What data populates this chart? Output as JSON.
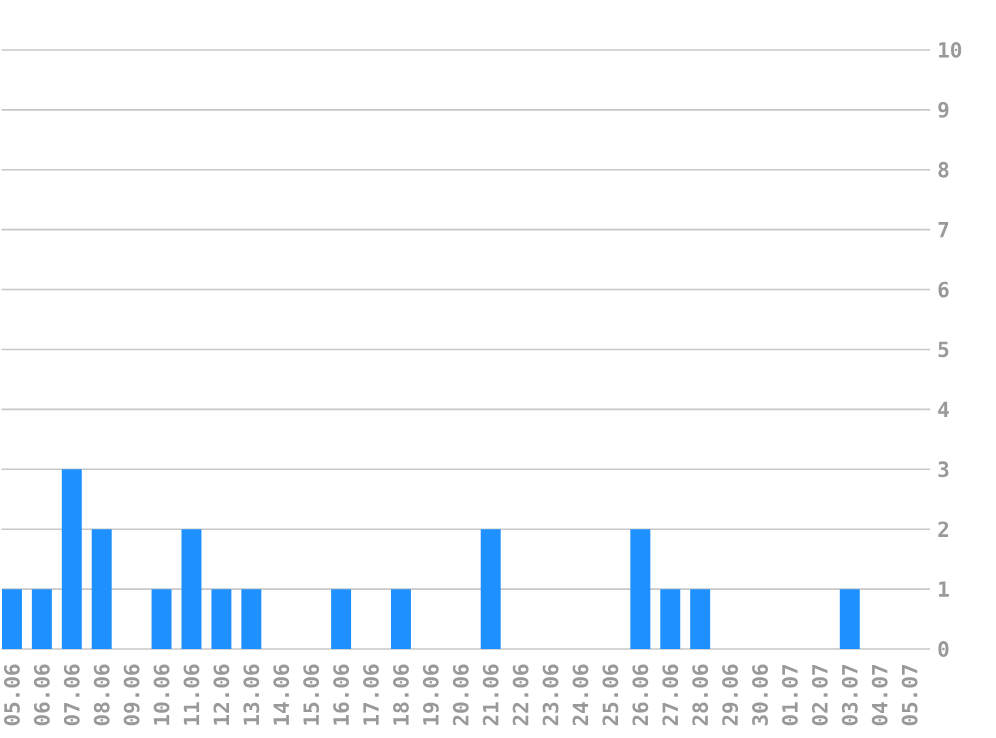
{
  "chart_data": {
    "type": "bar",
    "categories": [
      "05.06",
      "06.06",
      "07.06",
      "08.06",
      "09.06",
      "10.06",
      "11.06",
      "12.06",
      "13.06",
      "14.06",
      "15.06",
      "16.06",
      "17.06",
      "18.06",
      "19.06",
      "20.06",
      "21.06",
      "22.06",
      "23.06",
      "24.06",
      "25.06",
      "26.06",
      "27.06",
      "28.06",
      "29.06",
      "30.06",
      "01.07",
      "02.07",
      "03.07",
      "04.07",
      "05.07"
    ],
    "values": [
      1,
      1,
      3,
      2,
      0,
      1,
      2,
      1,
      1,
      0,
      0,
      1,
      0,
      1,
      0,
      0,
      2,
      0,
      0,
      0,
      0,
      2,
      1,
      1,
      0,
      0,
      0,
      0,
      1,
      0,
      0
    ],
    "color": "#1e90ff",
    "ylim": [
      0,
      10
    ],
    "yticks": [
      0,
      1,
      2,
      3,
      4,
      5,
      6,
      7,
      8,
      9,
      10
    ],
    "grid": "y"
  }
}
